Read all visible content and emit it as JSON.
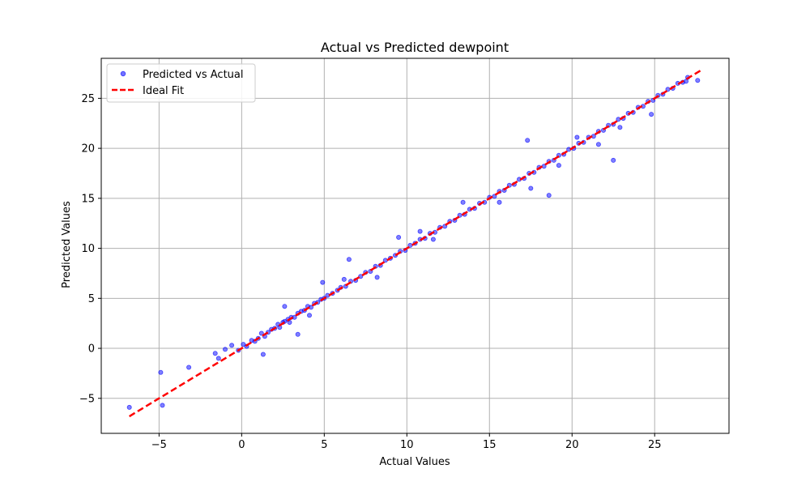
{
  "chart_data": {
    "type": "scatter",
    "title": "Actual vs Predicted dewpoint",
    "xlabel": "Actual Values",
    "ylabel": "Predicted Values",
    "xlim": [
      -8.5,
      29.5
    ],
    "ylim": [
      -8.5,
      29.0
    ],
    "xticks": [
      -5,
      0,
      5,
      10,
      15,
      20,
      25
    ],
    "yticks": [
      -5,
      0,
      5,
      10,
      15,
      20,
      25
    ],
    "xtick_labels": [
      "−5",
      "0",
      "5",
      "10",
      "15",
      "20",
      "25"
    ],
    "ytick_labels": [
      "−5",
      "0",
      "5",
      "10",
      "15",
      "20",
      "25"
    ],
    "grid": true,
    "legend_position": "upper-left",
    "series": [
      {
        "name": "Predicted vs Actual",
        "kind": "scatter",
        "color": "#0000ff",
        "note_points": "dense cloud along the diagonal from about 0 to 27; sampled representative points listed",
        "x": [
          -6.8,
          -4.9,
          -4.8,
          -3.2,
          -1.6,
          -1.4,
          -1.0,
          -0.6,
          -0.2,
          0.1,
          0.3,
          0.6,
          0.8,
          1.0,
          1.2,
          1.4,
          1.6,
          1.8,
          2.0,
          2.2,
          2.3,
          2.5,
          2.6,
          2.8,
          3.0,
          3.2,
          3.4,
          3.6,
          3.8,
          4.0,
          4.2,
          4.4,
          4.6,
          4.8,
          5.0,
          5.2,
          5.5,
          5.8,
          6.0,
          6.3,
          6.6,
          6.9,
          7.2,
          7.5,
          7.8,
          8.1,
          8.4,
          8.7,
          9.0,
          9.3,
          9.6,
          9.9,
          10.2,
          10.5,
          10.8,
          11.1,
          11.4,
          11.7,
          12.0,
          12.3,
          12.6,
          12.9,
          13.2,
          13.5,
          13.8,
          14.1,
          14.4,
          14.7,
          15.0,
          15.3,
          15.6,
          15.9,
          16.2,
          16.5,
          16.8,
          17.1,
          17.4,
          17.7,
          18.0,
          18.3,
          18.6,
          18.9,
          19.2,
          19.5,
          19.8,
          20.1,
          20.4,
          20.7,
          21.0,
          21.3,
          21.6,
          21.9,
          22.2,
          22.5,
          22.8,
          23.1,
          23.4,
          23.7,
          24.0,
          24.3,
          24.6,
          24.9,
          25.2,
          25.5,
          25.8,
          26.1,
          26.4,
          26.7,
          27.0,
          27.6,
          1.3,
          2.6,
          3.4,
          4.9,
          6.5,
          9.5,
          13.4,
          17.3,
          18.6,
          20.3,
          21.6,
          22.5,
          24.8,
          17.5,
          15.6,
          2.9,
          6.2,
          10.8,
          11.6,
          8.2,
          4.1,
          22.9,
          26.9,
          19.2
        ],
        "y": [
          -5.9,
          -2.4,
          -5.7,
          -1.9,
          -0.5,
          -1.0,
          -0.1,
          0.3,
          -0.2,
          0.4,
          0.2,
          0.8,
          0.7,
          1.0,
          1.5,
          1.2,
          1.6,
          1.9,
          2.0,
          2.4,
          2.1,
          2.6,
          2.7,
          2.9,
          3.1,
          3.1,
          3.5,
          3.7,
          3.8,
          4.2,
          4.1,
          4.5,
          4.6,
          4.9,
          5.0,
          5.3,
          5.5,
          5.8,
          6.1,
          6.2,
          6.7,
          6.8,
          7.2,
          7.6,
          7.7,
          8.2,
          8.3,
          8.8,
          9.0,
          9.3,
          9.7,
          9.8,
          10.3,
          10.5,
          10.9,
          11.0,
          11.5,
          11.6,
          12.1,
          12.2,
          12.7,
          12.8,
          13.3,
          13.4,
          13.9,
          14.0,
          14.5,
          14.6,
          15.1,
          15.2,
          15.7,
          15.8,
          16.3,
          16.4,
          16.9,
          17.0,
          17.5,
          17.6,
          18.1,
          18.2,
          18.7,
          18.8,
          19.3,
          19.4,
          19.9,
          20.0,
          20.5,
          20.6,
          21.1,
          21.2,
          21.7,
          21.8,
          22.3,
          22.4,
          22.9,
          23.0,
          23.5,
          23.6,
          24.1,
          24.2,
          24.7,
          24.8,
          25.3,
          25.4,
          25.9,
          26.0,
          26.5,
          26.6,
          27.1,
          26.8,
          -0.6,
          4.2,
          1.4,
          6.6,
          8.9,
          11.1,
          14.6,
          20.8,
          15.3,
          21.1,
          20.4,
          18.8,
          23.4,
          16.0,
          14.6,
          2.6,
          6.9,
          11.7,
          10.9,
          7.1,
          3.3,
          22.1,
          26.7,
          18.3
        ]
      },
      {
        "name": "Ideal Fit",
        "kind": "line",
        "color": "#ff0000",
        "dash": "dashed",
        "x": [
          -6.8,
          27.8
        ],
        "y": [
          -6.8,
          27.8
        ]
      }
    ]
  }
}
